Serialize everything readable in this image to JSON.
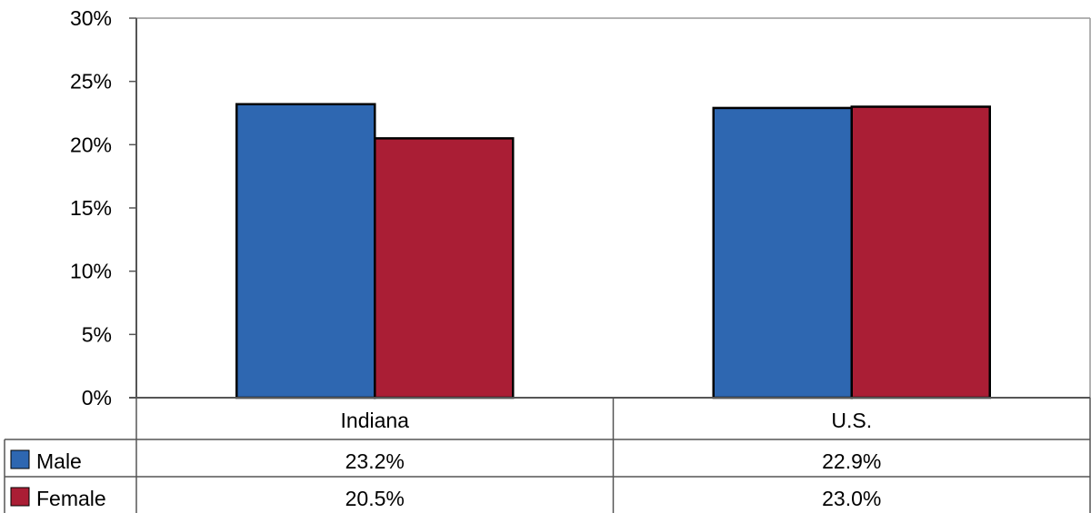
{
  "chart_data": {
    "type": "bar",
    "categories": [
      "Indiana",
      "U.S."
    ],
    "series": [
      {
        "name": "Male",
        "values": [
          23.2,
          22.9
        ],
        "labels": [
          "23.2%",
          "22.9%"
        ],
        "color": "#2E67B1"
      },
      {
        "name": "Female",
        "values": [
          20.5,
          23.0
        ],
        "labels": [
          "20.5%",
          "23.0%"
        ],
        "color": "#AA1E35"
      }
    ],
    "ylim": [
      0,
      30
    ],
    "yticks": [
      0,
      5,
      10,
      15,
      20,
      25,
      30
    ],
    "ytick_labels": [
      "0%",
      "5%",
      "10%",
      "15%",
      "20%",
      "25%",
      "30%"
    ],
    "grid": false,
    "legend": "data-table-left"
  }
}
